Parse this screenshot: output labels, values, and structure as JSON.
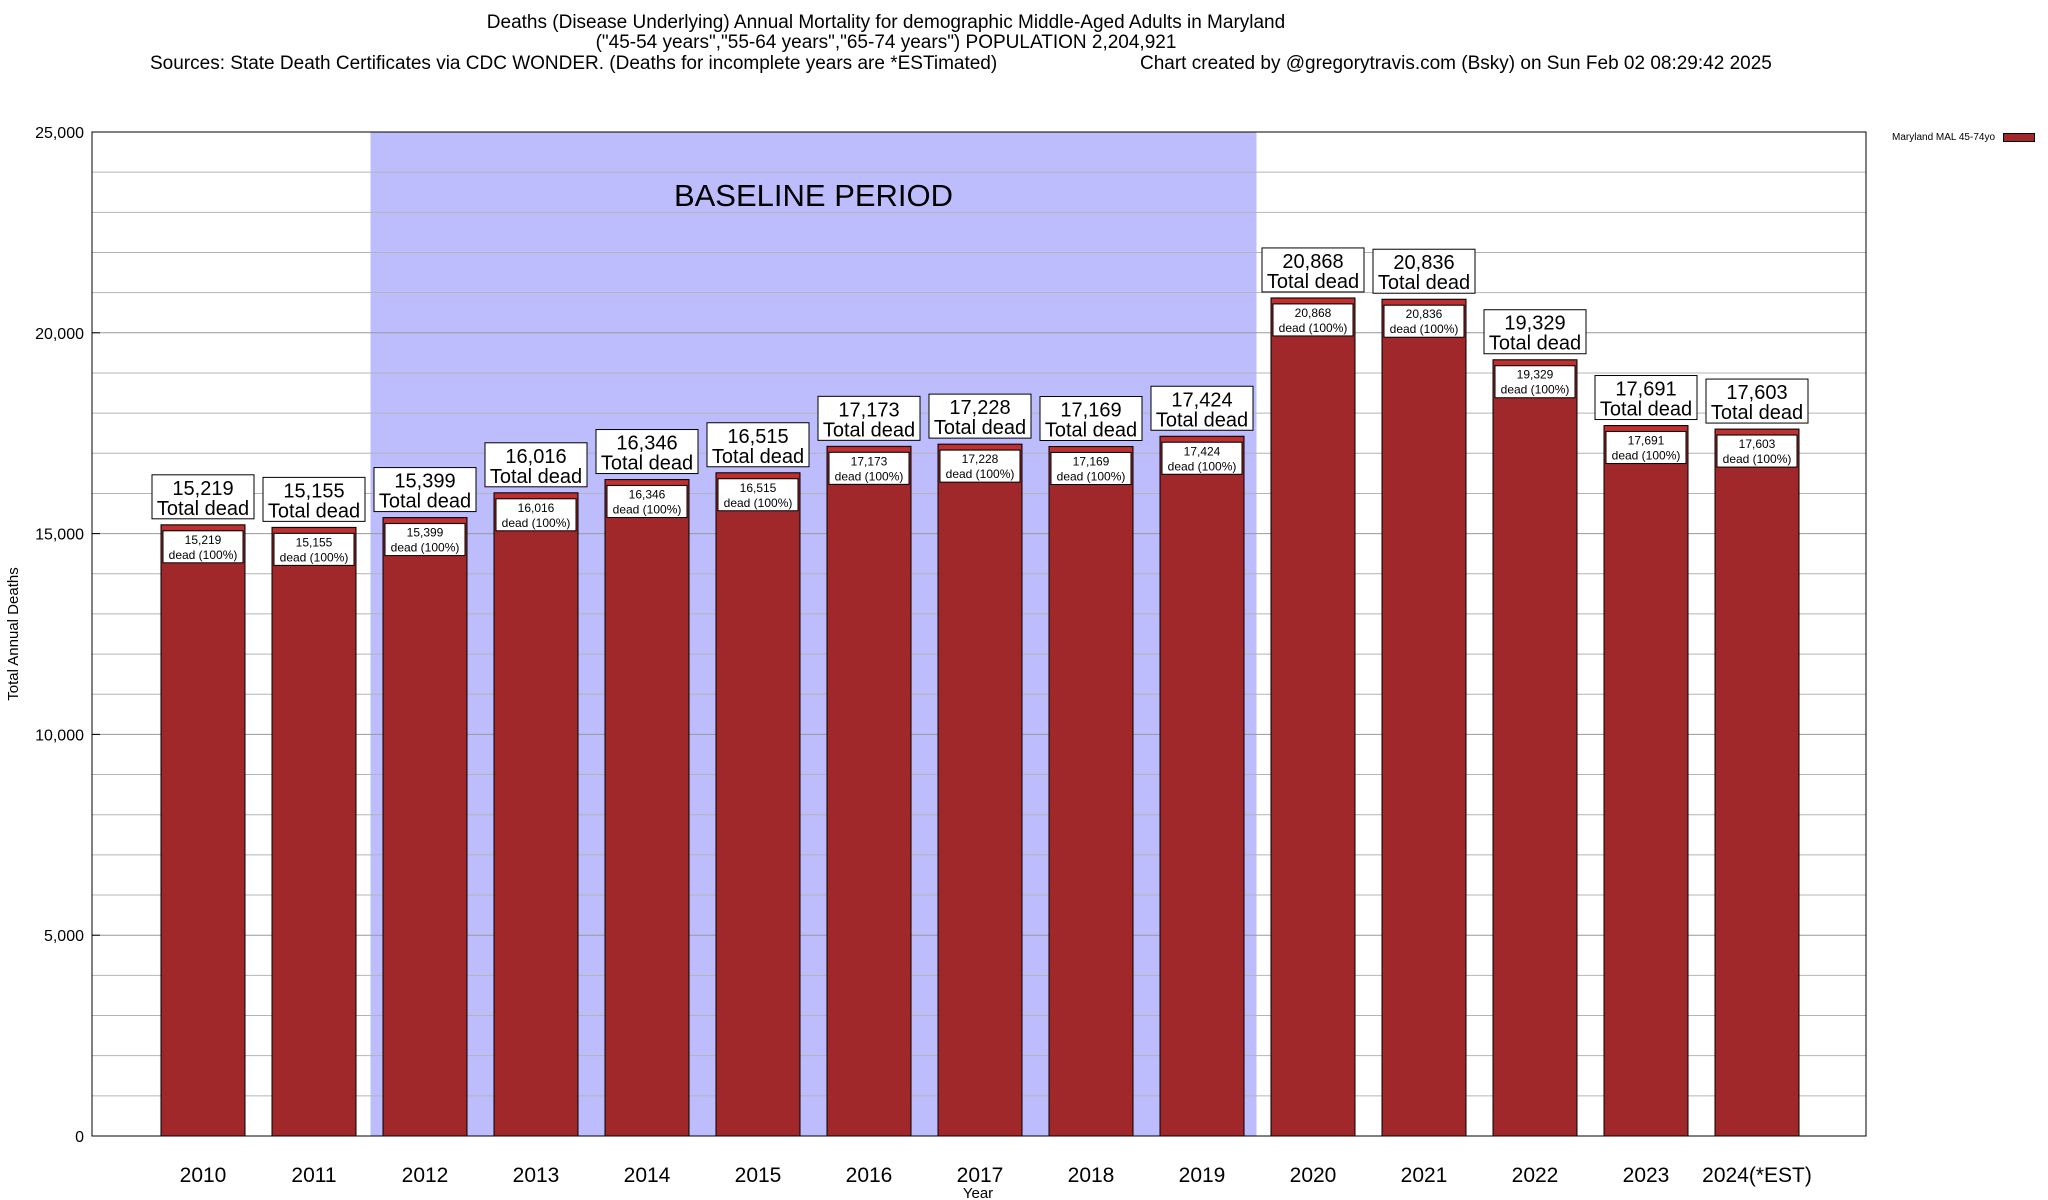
{
  "chart_data": {
    "type": "bar",
    "title_lines": [
      "Deaths (Disease Underlying) Annual Mortality for demographic Middle-Aged Adults in Maryland",
      "(\"45-54 years\",\"55-64 years\",\"65-74 years\") POPULATION 2,204,921"
    ],
    "sources": "Sources: State Death Certificates via CDC WONDER. (Deaths for incomplete years are *ESTimated)",
    "credit": "Chart created by @gregorytravis.com (Bsky) on Sun Feb 02 08:29:42 2025",
    "xlabel": "Year",
    "ylabel": "Total Annual Deaths",
    "ylim": [
      0,
      25000
    ],
    "yticks": [
      {
        "value": 0,
        "label": "0"
      },
      {
        "value": 5000,
        "label": "5,000"
      },
      {
        "value": 10000,
        "label": "10,000"
      },
      {
        "value": 15000,
        "label": "15,000"
      },
      {
        "value": 20000,
        "label": "20,000"
      },
      {
        "value": 25000,
        "label": "25,000"
      }
    ],
    "grid": true,
    "legend_position": "top-right",
    "series": [
      {
        "name": "Maryland MAL 45-74yo",
        "color": "#a0282a"
      }
    ],
    "categories": [
      "2010",
      "2011",
      "2012",
      "2013",
      "2014",
      "2015",
      "2016",
      "2017",
      "2018",
      "2019",
      "2020",
      "2021",
      "2022",
      "2023",
      "2024(*EST)"
    ],
    "values": [
      15219,
      15155,
      15399,
      16016,
      16346,
      16515,
      17173,
      17228,
      17169,
      17424,
      20868,
      20836,
      19329,
      17691,
      17603
    ],
    "value_labels": [
      "15,219",
      "15,155",
      "15,399",
      "16,016",
      "16,346",
      "16,515",
      "17,173",
      "17,228",
      "17,169",
      "17,424",
      "20,868",
      "20,836",
      "19,329",
      "17,691",
      "17,603"
    ],
    "total_label_suffix": "Total dead",
    "inner_label_suffix": "dead (100%)",
    "baseline": {
      "label": "BASELINE PERIOD",
      "from": "2012",
      "to": "2019",
      "color": "#bdbdfd"
    },
    "bar_color": "#a0282a",
    "bar_top_band_color": "#c0302e"
  }
}
